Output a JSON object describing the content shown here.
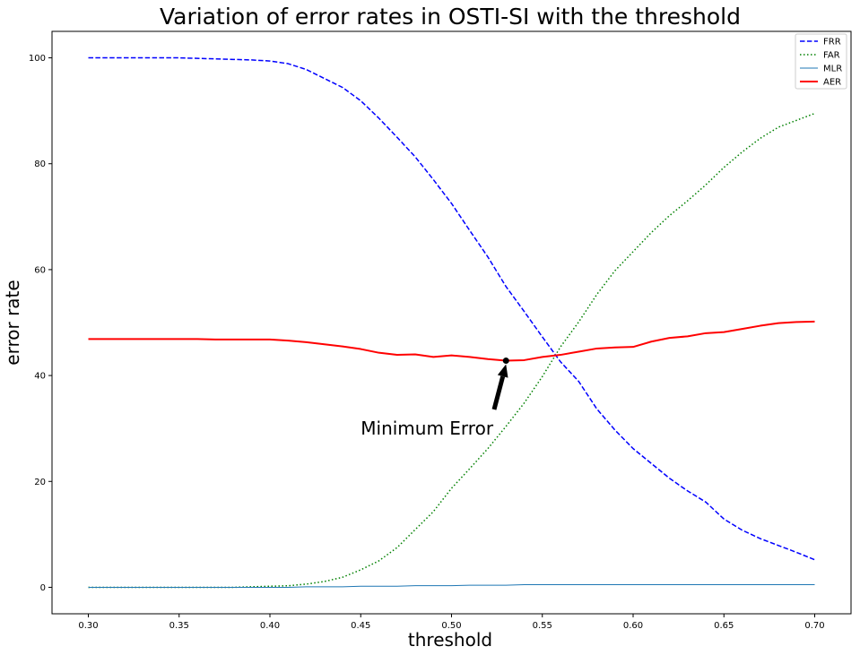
{
  "chart_data": {
    "type": "line",
    "title": "Variation of error rates in OSTI-SI with the threshold",
    "xlabel": "threshold",
    "ylabel": "error rate",
    "xlim": [
      0.28,
      0.72
    ],
    "ylim": [
      -5,
      105
    ],
    "xticks": [
      0.3,
      0.35,
      0.4,
      0.45,
      0.5,
      0.55,
      0.6,
      0.65,
      0.7
    ],
    "xtick_labels": [
      "0.30",
      "0.35",
      "0.40",
      "0.45",
      "0.50",
      "0.55",
      "0.60",
      "0.65",
      "0.70"
    ],
    "yticks": [
      0,
      20,
      40,
      60,
      80,
      100
    ],
    "ytick_labels": [
      "0",
      "20",
      "40",
      "60",
      "80",
      "100"
    ],
    "grid": false,
    "legend_position": "top-right",
    "x": [
      0.3,
      0.31,
      0.32,
      0.33,
      0.34,
      0.35,
      0.36,
      0.37,
      0.38,
      0.39,
      0.4,
      0.41,
      0.42,
      0.43,
      0.44,
      0.45,
      0.46,
      0.47,
      0.48,
      0.49,
      0.5,
      0.51,
      0.52,
      0.53,
      0.54,
      0.55,
      0.56,
      0.57,
      0.58,
      0.59,
      0.6,
      0.61,
      0.62,
      0.63,
      0.64,
      0.65,
      0.66,
      0.67,
      0.68,
      0.69,
      0.7
    ],
    "series": [
      {
        "name": "FRR",
        "color": "#0000ff",
        "style": "dashed",
        "width": 1.5,
        "values": [
          100,
          100,
          100,
          100,
          100,
          100,
          99.9,
          99.8,
          99.7,
          99.6,
          99.4,
          98.9,
          97.8,
          96.1,
          94.4,
          91.9,
          88.6,
          85.0,
          81.3,
          77.0,
          72.5,
          67.4,
          62.4,
          56.8,
          52.1,
          47.3,
          42.6,
          38.9,
          33.7,
          29.7,
          26.2,
          23.4,
          20.6,
          18.2,
          16.1,
          12.9,
          10.8,
          9.2,
          7.9,
          6.6,
          5.2
        ]
      },
      {
        "name": "FAR",
        "color": "#008000",
        "style": "dotted",
        "width": 1.5,
        "values": [
          0,
          0,
          0,
          0,
          0,
          0,
          0,
          0,
          0,
          0.1,
          0.2,
          0.3,
          0.6,
          1.1,
          1.9,
          3.3,
          5.0,
          7.5,
          10.9,
          14.3,
          18.7,
          22.4,
          26.2,
          30.4,
          34.8,
          39.8,
          45.4,
          50.1,
          55.3,
          59.8,
          63.4,
          67.0,
          70.2,
          73.0,
          76.0,
          79.3,
          82.2,
          84.8,
          86.9,
          88.2,
          89.5
        ]
      },
      {
        "name": "MLR",
        "color": "#1f77b4",
        "style": "solid",
        "width": 1,
        "values": [
          0,
          0,
          0,
          0,
          0,
          0,
          0,
          0,
          0,
          0,
          0,
          0,
          0.1,
          0.1,
          0.1,
          0.2,
          0.2,
          0.2,
          0.3,
          0.3,
          0.3,
          0.4,
          0.4,
          0.4,
          0.5,
          0.5,
          0.5,
          0.5,
          0.5,
          0.5,
          0.5,
          0.5,
          0.5,
          0.5,
          0.5,
          0.5,
          0.5,
          0.5,
          0.5,
          0.5,
          0.5
        ]
      },
      {
        "name": "AER",
        "color": "#ff0000",
        "style": "solid",
        "width": 2,
        "values": [
          46.9,
          46.9,
          46.9,
          46.9,
          46.9,
          46.9,
          46.9,
          46.8,
          46.8,
          46.8,
          46.8,
          46.6,
          46.3,
          45.9,
          45.5,
          45.0,
          44.3,
          43.9,
          44.0,
          43.5,
          43.8,
          43.5,
          43.1,
          42.8,
          42.9,
          43.5,
          43.9,
          44.5,
          45.1,
          45.3,
          45.4,
          46.4,
          47.1,
          47.4,
          48.0,
          48.2,
          48.8,
          49.4,
          49.9,
          50.1,
          50.2
        ]
      }
    ],
    "annotation": {
      "text": "Minimum Error",
      "point_x": 0.53,
      "point_y": 42.8,
      "text_x": 0.45,
      "text_y": 30,
      "color": "#000000"
    }
  }
}
